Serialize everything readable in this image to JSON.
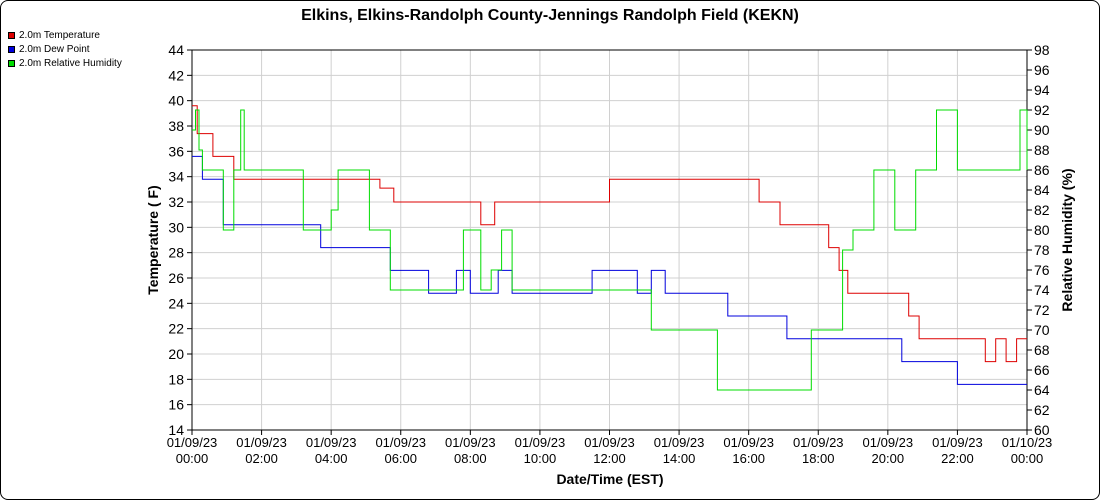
{
  "chart_data": {
    "type": "line",
    "title": "Elkins, Elkins-Randolph County-Jennings Randolph Field (KEKN)",
    "xlabel": "Date/Time (EST)",
    "ylabel": "Temperature ( F)",
    "y2label": "Relative Humidity (%)",
    "ylim": [
      14,
      44
    ],
    "y2lim": [
      60,
      98
    ],
    "xlim": [
      0,
      24
    ],
    "grid": true,
    "legend_position": "top-left",
    "x_ticks": [
      {
        "date": "01/09/23",
        "time": "00:00"
      },
      {
        "date": "01/09/23",
        "time": "02:00"
      },
      {
        "date": "01/09/23",
        "time": "04:00"
      },
      {
        "date": "01/09/23",
        "time": "06:00"
      },
      {
        "date": "01/09/23",
        "time": "08:00"
      },
      {
        "date": "01/09/23",
        "time": "10:00"
      },
      {
        "date": "01/09/23",
        "time": "12:00"
      },
      {
        "date": "01/09/23",
        "time": "14:00"
      },
      {
        "date": "01/09/23",
        "time": "16:00"
      },
      {
        "date": "01/09/23",
        "time": "18:00"
      },
      {
        "date": "01/09/23",
        "time": "20:00"
      },
      {
        "date": "01/09/23",
        "time": "22:00"
      },
      {
        "date": "01/10/23",
        "time": "00:00"
      }
    ],
    "y_ticks": [
      "14",
      "16",
      "18",
      "20",
      "22",
      "24",
      "26",
      "28",
      "30",
      "32",
      "34",
      "36",
      "38",
      "40",
      "42",
      "44"
    ],
    "y2_ticks": [
      "60",
      "62",
      "64",
      "66",
      "68",
      "70",
      "72",
      "74",
      "76",
      "78",
      "80",
      "82",
      "84",
      "86",
      "88",
      "90",
      "92",
      "94",
      "96",
      "98"
    ],
    "series": [
      {
        "name": "2.0m Temperature",
        "color": "#dd0000",
        "axis": "left",
        "x": [
          0,
          0.15,
          0.3,
          0.6,
          0.9,
          1.2,
          1.35,
          1.5,
          1.7,
          1.9,
          2.1,
          2.3,
          2.7,
          2.9,
          3.2,
          3.6,
          4.0,
          4.4,
          4.9,
          5.4,
          5.8,
          6.2,
          6.6,
          7.0,
          7.5,
          7.9,
          8.3,
          8.7,
          9.2,
          9.8,
          10.5,
          11.1,
          11.5,
          12.0,
          12.5,
          12.9,
          13.3,
          13.7,
          14.3,
          15.0,
          15.7,
          16.3,
          16.9,
          17.3,
          17.8,
          18.3,
          18.6,
          18.85,
          19.1,
          19.5,
          19.9,
          20.3,
          20.6,
          20.9,
          21.3,
          21.8,
          22.3,
          22.8,
          23.1,
          23.4,
          23.7,
          24.0
        ],
        "y": [
          39.6,
          37.4,
          37.4,
          35.6,
          35.6,
          33.8,
          33.8,
          33.8,
          33.8,
          33.8,
          33.8,
          33.8,
          33.8,
          33.8,
          33.8,
          33.8,
          33.8,
          33.8,
          33.8,
          33.1,
          32.0,
          32.0,
          32.0,
          32.0,
          32.0,
          32.0,
          30.2,
          32.0,
          32.0,
          32.0,
          32.0,
          32.0,
          32.0,
          33.8,
          33.8,
          33.8,
          33.8,
          33.8,
          33.8,
          33.8,
          33.8,
          32.0,
          30.2,
          30.2,
          30.2,
          28.4,
          26.6,
          24.8,
          24.8,
          24.8,
          24.8,
          24.8,
          23.0,
          21.2,
          21.2,
          21.2,
          21.2,
          19.4,
          21.2,
          19.4,
          21.2,
          21.2
        ]
      },
      {
        "name": "2.0m Dew Point",
        "color": "#0000dd",
        "axis": "left",
        "x": [
          0,
          0.15,
          0.3,
          0.6,
          0.8,
          0.9,
          1.2,
          1.5,
          1.8,
          2.1,
          2.4,
          2.7,
          2.9,
          3.1,
          3.3,
          3.7,
          4.2,
          4.7,
          5.2,
          5.5,
          5.7,
          6.0,
          6.4,
          6.8,
          7.2,
          7.6,
          8.0,
          8.4,
          8.8,
          9.2,
          9.6,
          10.0,
          10.6,
          11.1,
          11.5,
          11.9,
          12.3,
          12.8,
          13.2,
          13.6,
          14.1,
          14.6,
          15.0,
          15.4,
          15.8,
          16.3,
          16.7,
          17.1,
          17.5,
          17.9,
          18.3,
          18.7,
          19.1,
          19.6,
          20.0,
          20.4,
          20.8,
          21.2,
          21.6,
          22.0,
          22.4,
          22.8,
          23.2,
          23.6,
          24.0
        ],
        "y": [
          35.6,
          35.6,
          33.8,
          33.8,
          33.8,
          30.2,
          30.2,
          30.2,
          30.2,
          30.2,
          30.2,
          30.2,
          30.2,
          30.2,
          30.2,
          28.4,
          28.4,
          28.4,
          28.4,
          28.4,
          26.6,
          26.6,
          26.6,
          24.8,
          24.8,
          26.6,
          24.8,
          24.8,
          26.6,
          24.8,
          24.8,
          24.8,
          24.8,
          24.8,
          26.6,
          26.6,
          26.6,
          24.8,
          26.6,
          24.8,
          24.8,
          24.8,
          24.8,
          23.0,
          23.0,
          23.0,
          23.0,
          21.2,
          21.2,
          21.2,
          21.2,
          21.2,
          21.2,
          21.2,
          21.2,
          19.4,
          19.4,
          19.4,
          19.4,
          17.6,
          17.6,
          17.6,
          17.6,
          17.6,
          17.6
        ]
      },
      {
        "name": "2.0m Relative Humidity",
        "color": "#00dd00",
        "axis": "right",
        "x": [
          0,
          0.1,
          0.2,
          0.3,
          0.6,
          0.9,
          1.2,
          1.4,
          1.5,
          1.7,
          1.9,
          2.0,
          2.2,
          2.4,
          2.6,
          2.8,
          3.0,
          3.2,
          3.4,
          3.6,
          3.8,
          4.0,
          4.2,
          4.5,
          4.8,
          5.1,
          5.4,
          5.7,
          6.0,
          6.3,
          6.6,
          6.9,
          7.2,
          7.5,
          7.8,
          8.0,
          8.3,
          8.6,
          8.9,
          9.2,
          9.5,
          9.8,
          10.1,
          10.4,
          10.8,
          11.1,
          11.4,
          11.7,
          12.0,
          12.3,
          12.6,
          12.9,
          13.2,
          13.5,
          13.9,
          14.2,
          14.5,
          14.8,
          15.1,
          15.4,
          15.7,
          16.0,
          16.3,
          16.6,
          16.9,
          17.2,
          17.5,
          17.8,
          18.1,
          18.4,
          18.7,
          19.0,
          19.3,
          19.6,
          19.9,
          20.2,
          20.5,
          20.8,
          21.1,
          21.4,
          21.7,
          22.0,
          22.3,
          22.6,
          22.9,
          23.2,
          23.5,
          23.8,
          24.0
        ],
        "y": [
          90,
          92,
          88,
          86,
          86,
          80,
          86,
          92,
          86,
          86,
          86,
          86,
          86,
          86,
          86,
          86,
          86,
          80,
          80,
          80,
          80,
          82,
          86,
          86,
          86,
          80,
          80,
          74,
          74,
          74,
          74,
          74,
          74,
          74,
          80,
          80,
          74,
          76,
          80,
          74,
          74,
          74,
          74,
          74,
          74,
          74,
          74,
          74,
          74,
          74,
          74,
          74,
          70,
          70,
          70,
          70,
          70,
          70,
          64,
          64,
          64,
          64,
          64,
          64,
          64,
          64,
          64,
          70,
          70,
          70,
          78,
          80,
          80,
          86,
          86,
          80,
          80,
          86,
          86,
          92,
          92,
          86,
          86,
          86,
          86,
          86,
          86,
          92,
          86
        ]
      }
    ]
  }
}
